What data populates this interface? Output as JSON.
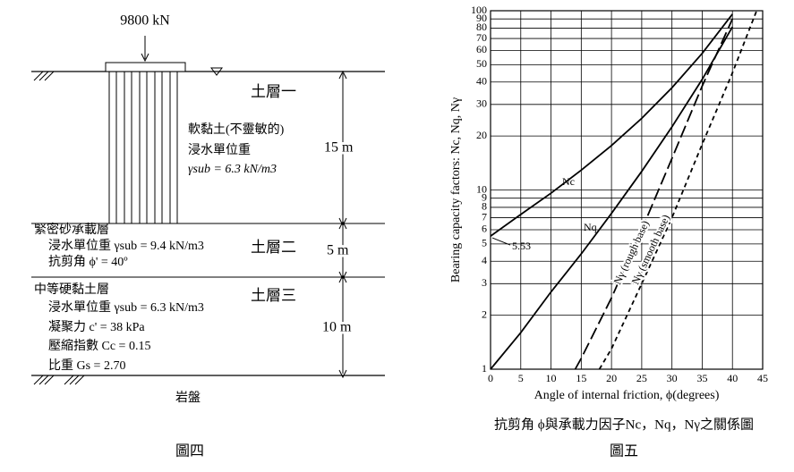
{
  "figure4": {
    "load": "9800 kN",
    "layer1": {
      "name": "土層一",
      "desc": "軟黏土(不靈敏的)",
      "weight_label": "浸水單位重",
      "weight": "γsub = 6.3 kN/m3",
      "thickness": "15 m"
    },
    "layer2": {
      "desc": "緊密砂承載層",
      "weight": "浸水單位重 γsub = 9.4 kN/m3",
      "friction": "抗剪角 ϕ' = 40º",
      "name": "土層二",
      "thickness": "5 m"
    },
    "layer3": {
      "desc": "中等硬黏土層",
      "weight": "浸水單位重 γsub = 6.3 kN/m3",
      "cohesion": "凝聚力 c' = 38 kPa",
      "compression": "壓縮指數 Cc = 0.15",
      "gravity": "比重 Gs = 2.70",
      "name": "土層三",
      "thickness": "10 m"
    },
    "bedrock": "岩盤",
    "caption": "圖四"
  },
  "chart_data": {
    "type": "line",
    "x_label": "Angle of internal friction, ϕ(degrees)",
    "y_label": "Bearing capacity factors: Nc, Nq, Nγ",
    "xlim": [
      0,
      45
    ],
    "xticks": [
      0,
      5,
      10,
      15,
      20,
      25,
      30,
      35,
      40,
      45
    ],
    "ylim": [
      1,
      100
    ],
    "yticks": [
      1,
      2,
      3,
      4,
      5,
      6,
      7,
      8,
      9,
      10,
      20,
      30,
      40,
      50,
      60,
      70,
      80,
      90,
      100
    ],
    "log_y": true,
    "grid": true,
    "annotation": "5.53",
    "series": [
      {
        "name": "Nc",
        "color": "#000000",
        "style": "solid",
        "x": [
          0,
          5,
          10,
          15,
          20,
          25,
          30,
          35,
          40
        ],
        "values": [
          5.53,
          7.3,
          9.6,
          12.9,
          17.7,
          25.1,
          37.2,
          57.8,
          95.7
        ]
      },
      {
        "name": "Nq",
        "color": "#000000",
        "style": "solid",
        "x": [
          0,
          5,
          10,
          15,
          20,
          25,
          30,
          35,
          40
        ],
        "values": [
          1,
          1.6,
          2.7,
          4.4,
          7.4,
          12.7,
          22.5,
          41.4,
          81.3
        ]
      },
      {
        "name": "Nγ (rough base)",
        "color": "#000000",
        "style": "dashed",
        "x": [
          14,
          15,
          20,
          25,
          30,
          35,
          40
        ],
        "values": [
          1,
          1.15,
          2.5,
          6,
          15,
          38,
          90
        ]
      },
      {
        "name": "Nγ (smooth base)",
        "color": "#000000",
        "style": "dotted",
        "x": [
          18,
          20,
          25,
          30,
          35,
          40,
          44
        ],
        "values": [
          1,
          1.3,
          3,
          7,
          18,
          45,
          100
        ]
      }
    ]
  },
  "figure5_caption": {
    "title": "抗剪角 ϕ與承載力因子Nc，Nq，Nγ之關係圖",
    "label": "圖五"
  }
}
